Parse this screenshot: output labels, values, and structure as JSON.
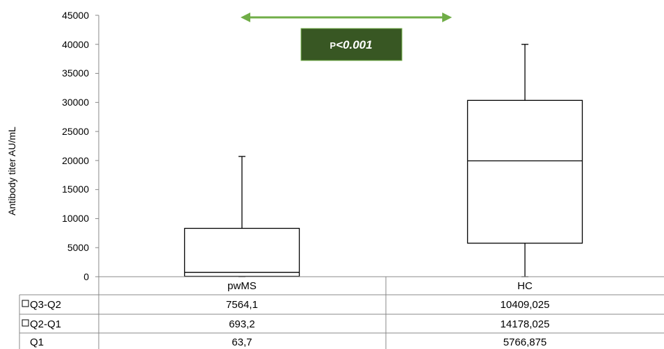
{
  "chart_data": {
    "type": "box",
    "ylabel": "Antibody titer AU/mL",
    "ylim": [
      0,
      45000
    ],
    "y_ticks": [
      "45000",
      "40000",
      "35000",
      "30000",
      "25000",
      "20000",
      "15000",
      "10000",
      "5000",
      "0"
    ],
    "y_tick_values": [
      45000,
      40000,
      35000,
      30000,
      25000,
      20000,
      15000,
      10000,
      5000,
      0
    ],
    "categories": [
      "pwMS",
      "HC"
    ],
    "boxes": [
      {
        "category": "pwMS",
        "whisker_low": 0,
        "q1": 63.7,
        "median": 756.9,
        "q3": 8321.0,
        "whisker_high": 20700
      },
      {
        "category": "HC",
        "whisker_low": 0,
        "q1": 5766.875,
        "median": 19944.9,
        "q3": 30353.925,
        "whisker_high": 40000
      }
    ],
    "significance": {
      "label_prefix": "P",
      "label_value": "<0.001",
      "arrow_color": "#70ad47",
      "box_color": "#385723"
    },
    "table": {
      "rows": [
        {
          "label": "Q3-Q2",
          "values": [
            "7564,1",
            "10409,025"
          ],
          "marker": "square"
        },
        {
          "label": "Q2-Q1",
          "values": [
            "693,2",
            "14178,025"
          ],
          "marker": "square"
        },
        {
          "label": "Q1",
          "values": [
            "63,7",
            "5766,875"
          ],
          "marker": "none"
        }
      ]
    },
    "grid": false,
    "legend": "table"
  }
}
